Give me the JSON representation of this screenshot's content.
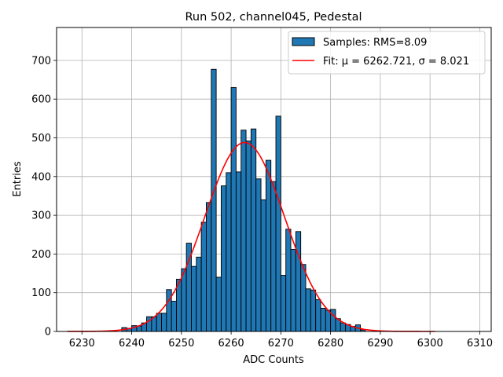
{
  "chart_data": {
    "type": "bar",
    "title": "Run 502, channel045, Pedestal",
    "xlabel": "ADC Counts",
    "ylabel": "Entries",
    "xlim": [
      6224.9,
      6312.3
    ],
    "ylim": [
      0,
      785
    ],
    "xticks": [
      6230,
      6240,
      6250,
      6260,
      6270,
      6280,
      6290,
      6300,
      6310
    ],
    "yticks": [
      0,
      100,
      200,
      300,
      400,
      500,
      600,
      700
    ],
    "grid": true,
    "legend_position": "top-right",
    "bin_width": 1,
    "bar_color": "#1f77b4",
    "fit_color": "#ff0000",
    "histogram": {
      "name": "Samples: RMS=8.09",
      "bins": [
        6238,
        6239,
        6240,
        6241,
        6242,
        6243,
        6244,
        6245,
        6246,
        6247,
        6248,
        6249,
        6250,
        6251,
        6252,
        6253,
        6254,
        6255,
        6256,
        6257,
        6258,
        6259,
        6260,
        6261,
        6262,
        6263,
        6264,
        6265,
        6266,
        6267,
        6268,
        6269,
        6270,
        6271,
        6272,
        6273,
        6274,
        6275,
        6276,
        6277,
        6278,
        6279,
        6280,
        6281,
        6282,
        6283,
        6284,
        6285,
        6286
      ],
      "values": [
        10,
        8,
        15,
        14,
        22,
        38,
        38,
        47,
        47,
        108,
        78,
        135,
        162,
        228,
        168,
        192,
        282,
        333,
        677,
        140,
        376,
        410,
        630,
        412,
        520,
        492,
        523,
        394,
        340,
        442,
        387,
        556,
        145,
        264,
        212,
        258,
        173,
        110,
        107,
        82,
        60,
        55,
        57,
        33,
        22,
        18,
        13,
        17,
        4
      ]
    },
    "fit": {
      "name": "Fit: μ = 6262.721, σ = 8.021",
      "mu": 6262.721,
      "sigma": 8.021,
      "amplitude": 488,
      "range": [
        6227,
        6301
      ]
    }
  }
}
